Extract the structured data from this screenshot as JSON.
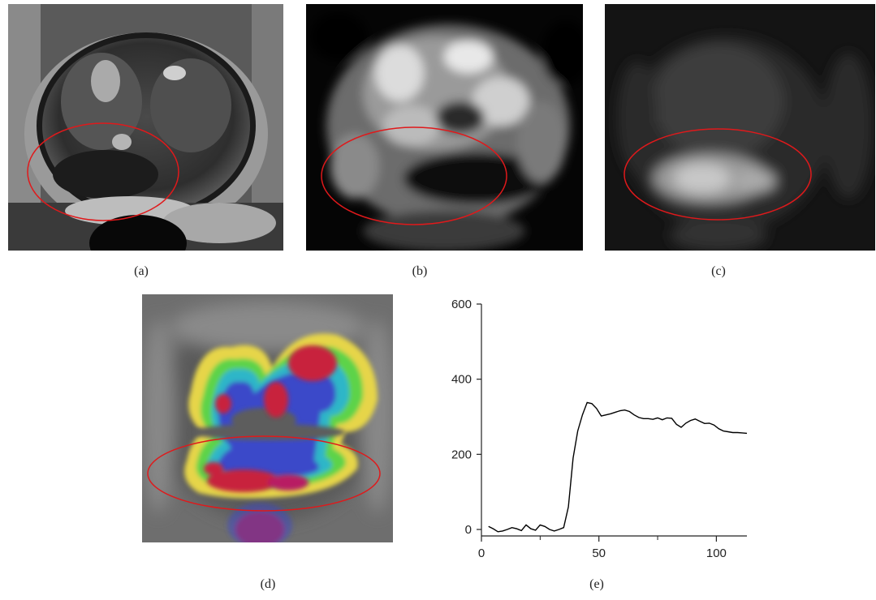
{
  "panels": [
    {
      "id": "a",
      "caption": "(a)"
    },
    {
      "id": "b",
      "caption": "(b)"
    },
    {
      "id": "c",
      "caption": "(c)"
    },
    {
      "id": "d",
      "caption": "(d)"
    },
    {
      "id": "e",
      "caption": "(e)"
    }
  ],
  "colors": {
    "roi_ellipse": "#e0191b",
    "curve": "#000000"
  },
  "chart_data": {
    "type": "line",
    "title": "",
    "xlabel": "",
    "ylabel": "",
    "xlim": [
      0,
      113
    ],
    "ylim": [
      0,
      600
    ],
    "x_ticks": [
      "0",
      "50",
      "100"
    ],
    "y_ticks": [
      "0",
      "200",
      "400",
      "600"
    ],
    "grid": false,
    "series": [
      {
        "x": [
          3,
          5,
          7,
          9,
          11,
          13,
          15,
          17,
          19,
          21,
          23,
          25,
          27,
          29,
          31,
          33,
          35,
          37,
          39,
          41,
          43,
          45,
          47,
          49,
          51,
          53,
          55,
          57,
          59,
          61,
          63,
          65,
          67,
          69,
          71,
          73,
          75,
          77,
          79,
          81,
          83,
          85,
          87,
          89,
          91,
          93,
          95,
          97,
          99,
          101,
          103,
          105,
          107,
          109,
          111,
          113
        ],
        "y": [
          8,
          2,
          -6,
          -4,
          0,
          5,
          2,
          -3,
          12,
          2,
          -2,
          12,
          8,
          0,
          -4,
          0,
          5,
          60,
          190,
          262,
          305,
          338,
          335,
          322,
          302,
          305,
          308,
          312,
          316,
          318,
          314,
          305,
          298,
          295,
          295,
          293,
          297,
          292,
          297,
          296,
          280,
          272,
          283,
          290,
          294,
          288,
          282,
          283,
          278,
          268,
          262,
          260,
          258,
          258,
          257,
          256
        ]
      }
    ]
  }
}
